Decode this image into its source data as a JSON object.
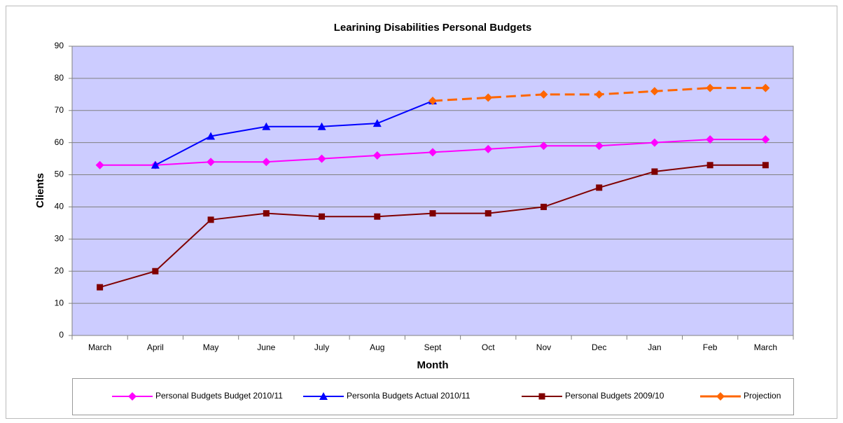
{
  "chart_data": {
    "type": "line",
    "title": "Learining Disabilities Personal Budgets",
    "x_label": "Month",
    "y_label": "Clients",
    "categories": [
      "March",
      "April",
      "May",
      "June",
      "July",
      "Aug",
      "Sept",
      "Oct",
      "Nov",
      "Dec",
      "Jan",
      "Feb",
      "March"
    ],
    "ylim": [
      0,
      90
    ],
    "yticks": [
      0,
      10,
      20,
      30,
      40,
      50,
      60,
      70,
      80,
      90
    ],
    "grid": true,
    "legend": "bottom",
    "series": [
      {
        "name": "Personal Budgets Budget 2010/11",
        "color": "#ff00ff",
        "marker": "diamond",
        "values": [
          53,
          53,
          54,
          54,
          55,
          56,
          57,
          58,
          59,
          59,
          60,
          61,
          61
        ]
      },
      {
        "name": "Personla Budgets Actual 2010/11",
        "color": "#0000ff",
        "marker": "triangle",
        "values": [
          null,
          53,
          62,
          65,
          65,
          66,
          73,
          null,
          null,
          null,
          null,
          null,
          null
        ]
      },
      {
        "name": "Personal Budgets 2009/10",
        "color": "#800000",
        "marker": "square",
        "values": [
          15,
          20,
          36,
          38,
          37,
          37,
          38,
          38,
          40,
          46,
          51,
          53,
          53
        ]
      },
      {
        "name": "Projection",
        "color": "#ff6600",
        "marker": "diamond",
        "dashed": true,
        "values": [
          null,
          null,
          null,
          null,
          null,
          null,
          73,
          74,
          75,
          75,
          76,
          77,
          77
        ]
      }
    ]
  }
}
